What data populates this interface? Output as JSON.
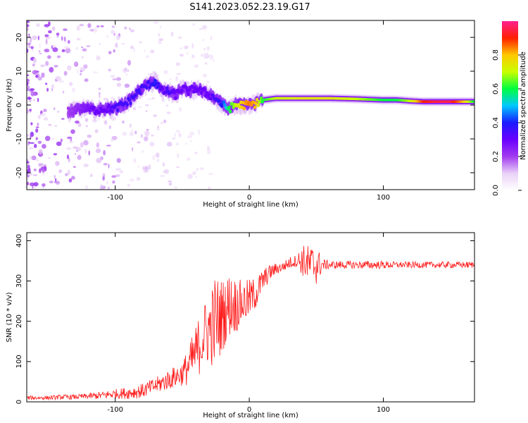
{
  "title": "S141.2023.052.23.19.G17",
  "chart_data": [
    {
      "type": "heatmap",
      "name": "spectrogram",
      "xlabel": "Height of straight line (km)",
      "ylabel": "Frequency (Hz)",
      "xlim": [
        -166,
        168
      ],
      "ylim": [
        -25,
        25
      ],
      "xticks": [
        -100,
        0,
        100
      ],
      "yticks": [
        -20,
        -10,
        0,
        10,
        20
      ],
      "colorbar": {
        "label": "Normalized spectral amplitude",
        "ticks": [
          0.0,
          0.2,
          0.4,
          0.6,
          0.8
        ],
        "range": [
          0,
          1
        ],
        "colormap": [
          "#ffffff",
          "#ead1f8",
          "#a23bef",
          "#6a00ff",
          "#1a1aff",
          "#00c8ff",
          "#00ff40",
          "#c8ff00",
          "#ffc800",
          "#ff2000",
          "#ff2090"
        ]
      },
      "ridge": {
        "x": [
          -135,
          -125,
          -115,
          -105,
          -100,
          -95,
          -90,
          -85,
          -80,
          -75,
          -70,
          -65,
          -60,
          -55,
          -50,
          -45,
          -40,
          -35,
          -30,
          -25,
          -20,
          -15,
          -10,
          -5,
          0,
          5,
          10,
          20,
          40,
          60,
          80,
          100,
          110,
          120,
          130,
          140,
          150,
          160,
          168
        ],
        "y": [
          -2,
          -1,
          -1.5,
          -1,
          -1,
          0,
          1,
          3,
          5,
          6,
          7,
          4,
          4,
          3,
          5,
          4,
          5,
          4,
          3,
          2,
          0,
          -1,
          0,
          0,
          0,
          0.5,
          1.5,
          2,
          2,
          2,
          1.8,
          1.5,
          1.5,
          1.2,
          1,
          1,
          1,
          1,
          1
        ],
        "amplitude": [
          0.2,
          0.25,
          0.3,
          0.3,
          0.35,
          0.35,
          0.35,
          0.35,
          0.35,
          0.35,
          0.4,
          0.3,
          0.35,
          0.3,
          0.3,
          0.3,
          0.3,
          0.3,
          0.3,
          0.35,
          0.4,
          0.6,
          0.7,
          0.8,
          0.85,
          0.8,
          0.6,
          0.7,
          0.75,
          0.75,
          0.7,
          0.6,
          0.6,
          0.7,
          0.9,
          0.95,
          0.95,
          0.8,
          0.6
        ]
      },
      "noise_region_x": [
        -166,
        -100
      ]
    },
    {
      "type": "line",
      "name": "snr",
      "xlabel": "Height of straight line (km)",
      "ylabel": "SNR (10 * v/v)",
      "xlim": [
        -166,
        168
      ],
      "ylim": [
        0,
        420
      ],
      "xticks": [
        -100,
        0,
        100
      ],
      "yticks": [
        0,
        100,
        200,
        300,
        400
      ],
      "color": "#ff1a1a",
      "series": [
        {
          "x": [
            -166,
            -150,
            -140,
            -130,
            -120,
            -110,
            -100,
            -90,
            -80,
            -70,
            -60,
            -50,
            -45,
            -40,
            -35,
            -30,
            -25,
            -20,
            -15,
            -10,
            -5,
            0,
            5,
            10,
            15,
            20,
            25,
            30,
            35,
            40,
            45,
            50,
            55,
            60,
            70,
            80,
            90,
            100,
            110,
            120,
            130,
            140,
            150,
            160,
            168
          ],
          "values": [
            10,
            10,
            12,
            12,
            14,
            16,
            20,
            22,
            27,
            40,
            55,
            70,
            90,
            120,
            160,
            180,
            200,
            215,
            240,
            240,
            245,
            255,
            270,
            300,
            320,
            330,
            335,
            345,
            350,
            350,
            340,
            340,
            340,
            340,
            340,
            340,
            340,
            340,
            340,
            340,
            340,
            340,
            340,
            340,
            340
          ],
          "noise": [
            5,
            5,
            6,
            6,
            7,
            10,
            12,
            15,
            18,
            20,
            25,
            30,
            50,
            70,
            80,
            90,
            120,
            90,
            80,
            70,
            55,
            50,
            40,
            30,
            20,
            15,
            12,
            15,
            15,
            40,
            50,
            50,
            15,
            10,
            10,
            10,
            10,
            10,
            8,
            8,
            8,
            8,
            8,
            8,
            8
          ]
        }
      ]
    }
  ]
}
